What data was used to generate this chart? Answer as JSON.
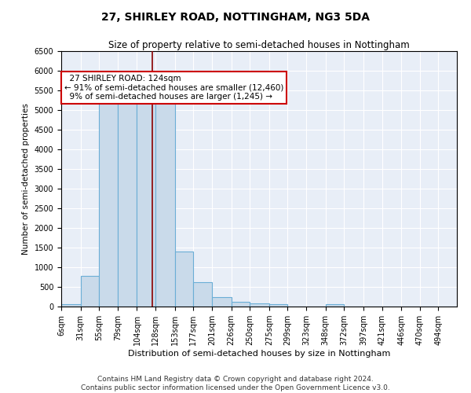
{
  "title": "27, SHIRLEY ROAD, NOTTINGHAM, NG3 5DA",
  "subtitle": "Size of property relative to semi-detached houses in Nottingham",
  "xlabel": "Distribution of semi-detached houses by size in Nottingham",
  "ylabel": "Number of semi-detached properties",
  "property_label": "27 SHIRLEY ROAD: 124sqm",
  "smaller_pct": "91%",
  "smaller_count": "12,460",
  "larger_pct": "9%",
  "larger_count": "1,245",
  "property_size": 124,
  "bin_labels": [
    "6sqm",
    "31sqm",
    "55sqm",
    "79sqm",
    "104sqm",
    "128sqm",
    "153sqm",
    "177sqm",
    "201sqm",
    "226sqm",
    "250sqm",
    "275sqm",
    "299sqm",
    "323sqm",
    "348sqm",
    "372sqm",
    "397sqm",
    "421sqm",
    "446sqm",
    "470sqm",
    "494sqm"
  ],
  "bin_edges": [
    6,
    31,
    55,
    79,
    104,
    128,
    153,
    177,
    201,
    226,
    250,
    275,
    299,
    323,
    348,
    372,
    397,
    421,
    446,
    470,
    494,
    518
  ],
  "bar_values": [
    70,
    780,
    5300,
    5300,
    5200,
    5200,
    1400,
    620,
    250,
    130,
    80,
    60,
    5,
    5,
    70,
    5,
    5,
    5,
    5,
    5,
    5
  ],
  "bar_color": "#c9daea",
  "bar_edge_color": "#6baed6",
  "background_color": "#e8eef7",
  "vline_color": "#8b0000",
  "vline_x": 124,
  "annotation_box_color": "#ffffff",
  "annotation_border_color": "#cc0000",
  "ylim": [
    0,
    6500
  ],
  "yticks": [
    0,
    500,
    1000,
    1500,
    2000,
    2500,
    3000,
    3500,
    4000,
    4500,
    5000,
    5500,
    6000,
    6500
  ],
  "footer_line1": "Contains HM Land Registry data © Crown copyright and database right 2024.",
  "footer_line2": "Contains public sector information licensed under the Open Government Licence v3.0.",
  "title_fontsize": 10,
  "subtitle_fontsize": 8.5,
  "annotation_fontsize": 7.5,
  "tick_fontsize": 7,
  "xlabel_fontsize": 8,
  "ylabel_fontsize": 7.5,
  "footer_fontsize": 6.5
}
